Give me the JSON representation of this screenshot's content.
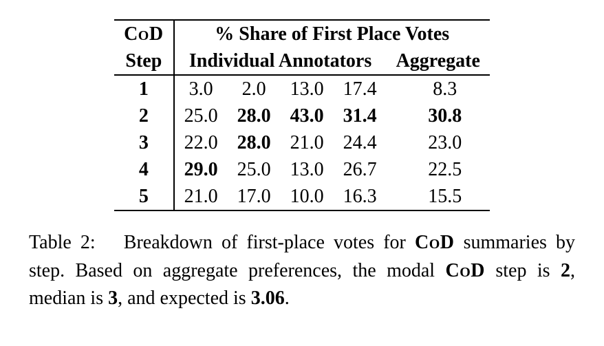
{
  "table": {
    "header": {
      "col1_line1": "CoD",
      "col1_line2": "Step",
      "span_title": "% Share of First Place Votes",
      "sub_left": "Individual Annotators",
      "sub_right": "Aggregate"
    },
    "rows": [
      {
        "step": "1",
        "a1": {
          "v": "3.0",
          "b": false
        },
        "a2": {
          "v": "2.0",
          "b": false
        },
        "a3": {
          "v": "13.0",
          "b": false
        },
        "a4": {
          "v": "17.4",
          "b": false
        },
        "agg": {
          "v": "8.3",
          "b": false
        }
      },
      {
        "step": "2",
        "a1": {
          "v": "25.0",
          "b": false
        },
        "a2": {
          "v": "28.0",
          "b": true
        },
        "a3": {
          "v": "43.0",
          "b": true
        },
        "a4": {
          "v": "31.4",
          "b": true
        },
        "agg": {
          "v": "30.8",
          "b": true
        }
      },
      {
        "step": "3",
        "a1": {
          "v": "22.0",
          "b": false
        },
        "a2": {
          "v": "28.0",
          "b": true
        },
        "a3": {
          "v": "21.0",
          "b": false
        },
        "a4": {
          "v": "24.4",
          "b": false
        },
        "agg": {
          "v": "23.0",
          "b": false
        }
      },
      {
        "step": "4",
        "a1": {
          "v": "29.0",
          "b": true
        },
        "a2": {
          "v": "25.0",
          "b": false
        },
        "a3": {
          "v": "13.0",
          "b": false
        },
        "a4": {
          "v": "26.7",
          "b": false
        },
        "agg": {
          "v": "22.5",
          "b": false
        }
      },
      {
        "step": "5",
        "a1": {
          "v": "21.0",
          "b": false
        },
        "a2": {
          "v": "17.0",
          "b": false
        },
        "a3": {
          "v": "10.0",
          "b": false
        },
        "a4": {
          "v": "16.3",
          "b": false
        },
        "agg": {
          "v": "15.5",
          "b": false
        }
      }
    ]
  },
  "caption": {
    "pre": "Table 2:  Breakdown of first-place votes for ",
    "cod1": "CoD",
    "mid1": " summaries by step. Based on aggregate preferences, the modal ",
    "cod2": "CoD",
    "mid2": " step is ",
    "b2": "2",
    "mid3": ", median is ",
    "b3": "3",
    "mid4": ", and expected is ",
    "b306": "3.06",
    "end": "."
  }
}
